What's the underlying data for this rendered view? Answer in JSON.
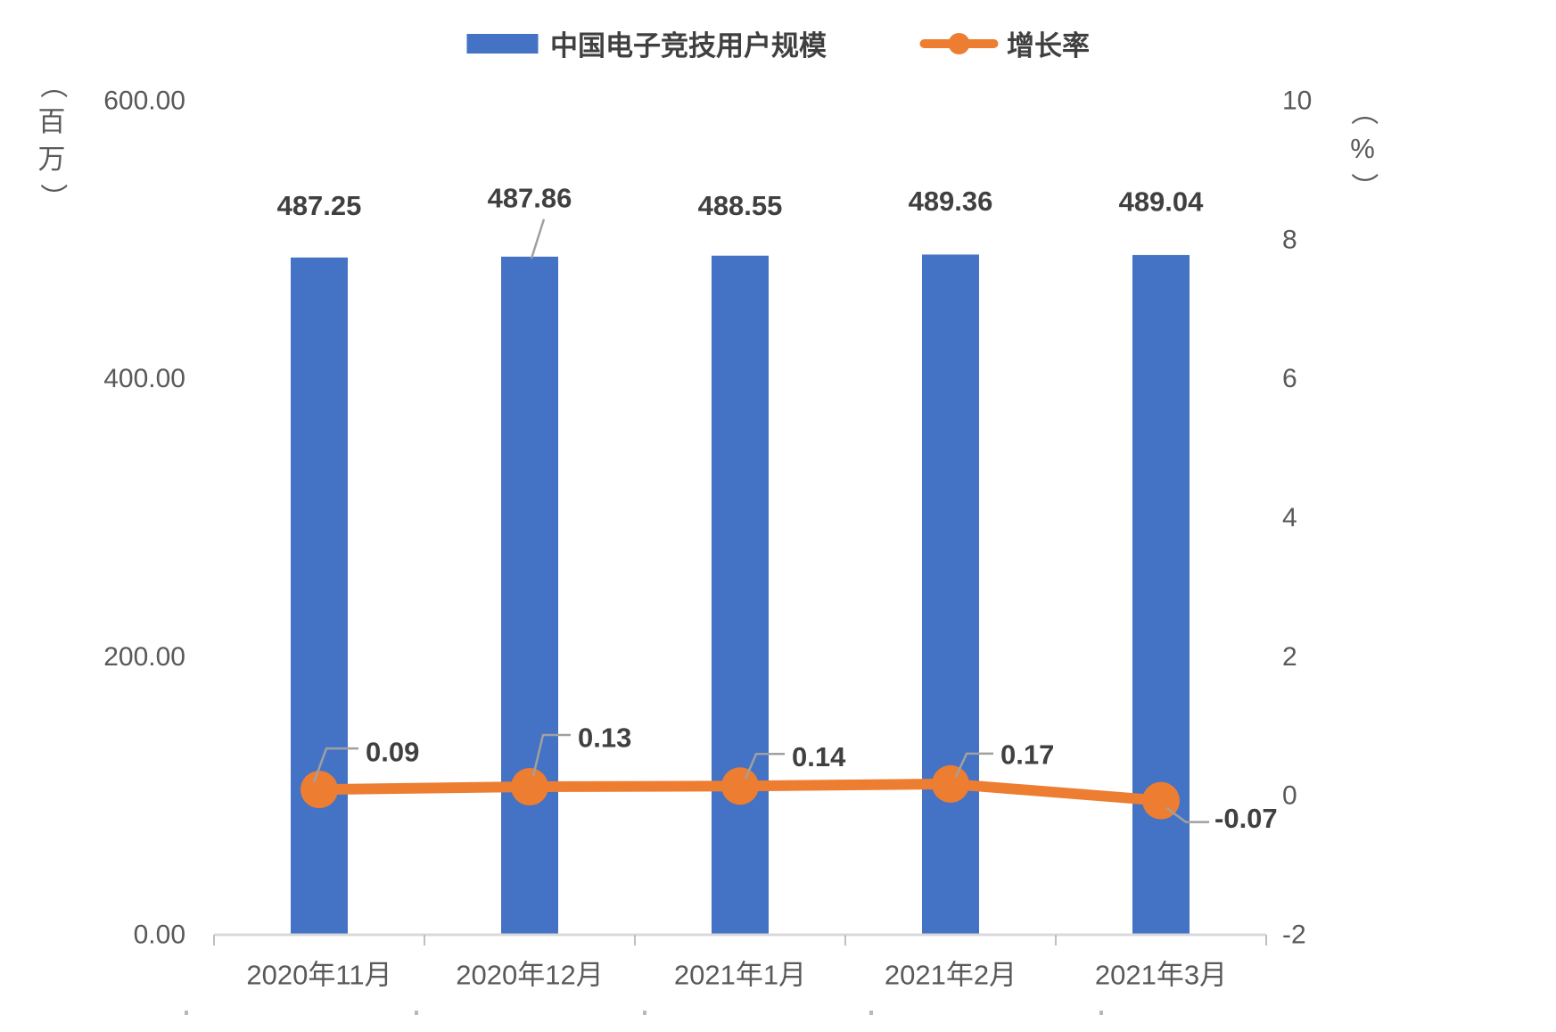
{
  "legend": {
    "items": [
      {
        "label": "中国电子竞技用户规模",
        "marker": "bar",
        "color": "#4472C4"
      },
      {
        "label": "增长率",
        "marker": "line-dot",
        "color": "#ED7D31"
      }
    ]
  },
  "chart_data": {
    "type": "combo",
    "categories": [
      "2020年11月",
      "2020年12月",
      "2021年1月",
      "2021年2月",
      "2021年3月"
    ],
    "series": [
      {
        "name": "中国电子竞技用户规模",
        "type": "bar",
        "axis": "left",
        "color": "#4472C4",
        "values": [
          487.25,
          487.86,
          488.55,
          489.36,
          489.04
        ],
        "labels": [
          "487.25",
          "487.86",
          "488.55",
          "489.36",
          "489.04"
        ]
      },
      {
        "name": "增长率",
        "type": "line",
        "axis": "right",
        "color": "#ED7D31",
        "values": [
          0.09,
          0.13,
          0.14,
          0.17,
          -0.07
        ],
        "labels": [
          "0.09",
          "0.13",
          "0.14",
          "0.17",
          "-0.07"
        ]
      }
    ],
    "left_axis": {
      "unit": "（百万）",
      "min": 0,
      "max": 600,
      "tick_values": [
        600,
        400,
        200,
        0
      ],
      "tick_labels": [
        "600.00",
        "400.00",
        "200.00",
        "0.00"
      ]
    },
    "right_axis": {
      "unit": "（%）",
      "min": -2,
      "max": 10,
      "tick_values": [
        10,
        8,
        6,
        4,
        2,
        0,
        -2
      ],
      "tick_labels": [
        "10",
        "8",
        "6",
        "4",
        "2",
        "0",
        "-2"
      ]
    },
    "grid": "off",
    "legend_position": "top-center"
  },
  "colors": {
    "bar": "#4472C4",
    "line": "#ED7D31",
    "axis_line": "#D9D9D9",
    "tick_mark": "#BFBFBF",
    "tick_text": "#595959",
    "data_label_text": "#404040",
    "leader_line": "#A0A0A0"
  }
}
